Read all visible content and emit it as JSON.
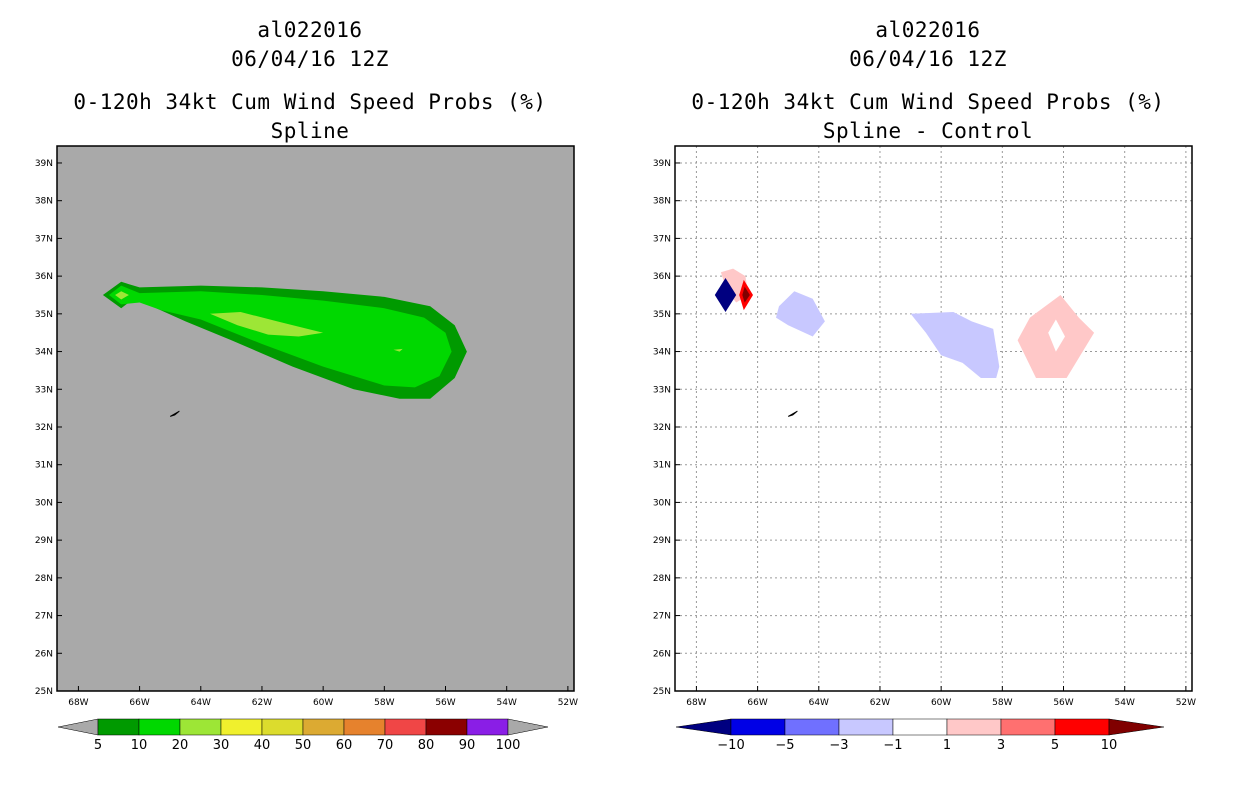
{
  "panels": [
    {
      "id": "spline",
      "title_lines": [
        "al022016",
        "06/04/16 12Z",
        "0-120h 34kt Cum Wind Speed Probs (%)",
        "Spline"
      ]
    },
    {
      "id": "difference",
      "title_lines": [
        "al022016",
        "06/04/16 12Z",
        "0-120h 34kt Cum Wind Speed Probs (%)",
        "Spline - Control"
      ]
    }
  ],
  "colors": {
    "map_background": "#a9a9a9",
    "grid": "#9a9a9a",
    "prob_5": "#009a00",
    "prob_10": "#00d800",
    "prob_20": "#9de636"
  },
  "chart_data": [
    {
      "type": "heatmap",
      "title": "0-120h 34kt Cum Wind Speed Probs (%)",
      "subtitle": "Spline",
      "storm": "al022016",
      "date": "06/04/16 12Z",
      "x_ticks": [
        "68W",
        "66W",
        "64W",
        "62W",
        "60W",
        "58W",
        "56W",
        "54W",
        "52W"
      ],
      "y_ticks": [
        "25N",
        "26N",
        "27N",
        "28N",
        "29N",
        "30N",
        "31N",
        "32N",
        "33N",
        "34N",
        "35N",
        "36N",
        "37N",
        "38N",
        "39N"
      ],
      "xlim": [
        -68.7,
        -51.8
      ],
      "ylim": [
        25,
        39.45
      ],
      "grid": false,
      "colorbar": {
        "labels": [
          "5",
          "10",
          "20",
          "30",
          "40",
          "50",
          "60",
          "70",
          "80",
          "90",
          "100"
        ],
        "colors": [
          "#009a00",
          "#00d800",
          "#9de636",
          "#f0f02d",
          "#dcdc2d",
          "#dcaa32",
          "#e6822d",
          "#f04646",
          "#8b0000",
          "#8a1ee6"
        ]
      },
      "contours": [
        {
          "level": 5,
          "color": "#009a00",
          "polygon": [
            [
              -67.2,
              35.5
            ],
            [
              -66.6,
              35.85
            ],
            [
              -66.0,
              35.7
            ],
            [
              -64.0,
              35.75
            ],
            [
              -62.0,
              35.7
            ],
            [
              -60.0,
              35.6
            ],
            [
              -58.0,
              35.45
            ],
            [
              -56.5,
              35.2
            ],
            [
              -55.7,
              34.7
            ],
            [
              -55.3,
              34.0
            ],
            [
              -55.7,
              33.3
            ],
            [
              -56.5,
              32.75
            ],
            [
              -57.5,
              32.75
            ],
            [
              -59.0,
              33.0
            ],
            [
              -61.0,
              33.6
            ],
            [
              -63.0,
              34.3
            ],
            [
              -64.5,
              34.8
            ],
            [
              -65.6,
              35.2
            ],
            [
              -66.2,
              35.4
            ],
            [
              -66.6,
              35.15
            ]
          ]
        },
        {
          "level": 10,
          "color": "#00d800",
          "polygon": [
            [
              -67.0,
              35.5
            ],
            [
              -66.6,
              35.75
            ],
            [
              -66.0,
              35.55
            ],
            [
              -64.0,
              35.6
            ],
            [
              -62.0,
              35.5
            ],
            [
              -60.0,
              35.35
            ],
            [
              -58.0,
              35.15
            ],
            [
              -56.7,
              34.9
            ],
            [
              -56.0,
              34.5
            ],
            [
              -55.8,
              34.0
            ],
            [
              -56.2,
              33.35
            ],
            [
              -57.0,
              33.05
            ],
            [
              -58.0,
              33.1
            ],
            [
              -60.0,
              33.6
            ],
            [
              -62.0,
              34.2
            ],
            [
              -64.0,
              34.85
            ],
            [
              -65.3,
              35.1
            ],
            [
              -66.0,
              35.3
            ],
            [
              -66.6,
              35.25
            ]
          ]
        },
        {
          "level": 20,
          "color": "#9de636",
          "polygon": [
            [
              -66.8,
              35.5
            ],
            [
              -66.6,
              35.6
            ],
            [
              -66.35,
              35.5
            ],
            [
              -66.6,
              35.38
            ]
          ]
        },
        {
          "level": 20,
          "color": "#9de636",
          "polygon": [
            [
              -63.7,
              35.0
            ],
            [
              -62.7,
              35.05
            ],
            [
              -61.5,
              34.8
            ],
            [
              -60.0,
              34.5
            ],
            [
              -60.8,
              34.4
            ],
            [
              -61.8,
              34.45
            ],
            [
              -62.8,
              34.7
            ]
          ]
        },
        {
          "level": 20,
          "color": "#9de636",
          "polygon": [
            [
              -57.7,
              34.05
            ],
            [
              -57.4,
              34.07
            ],
            [
              -57.5,
              34.0
            ]
          ]
        }
      ]
    },
    {
      "type": "heatmap",
      "title": "0-120h 34kt Cum Wind Speed Probs (%)",
      "subtitle": "Spline - Control",
      "storm": "al022016",
      "date": "06/04/16 12Z",
      "x_ticks": [
        "68W",
        "66W",
        "64W",
        "62W",
        "60W",
        "58W",
        "56W",
        "54W",
        "52W"
      ],
      "y_ticks": [
        "25N",
        "26N",
        "27N",
        "28N",
        "29N",
        "30N",
        "31N",
        "32N",
        "33N",
        "34N",
        "35N",
        "36N",
        "37N",
        "38N",
        "39N"
      ],
      "xlim": [
        -68.7,
        -51.8
      ],
      "ylim": [
        25,
        39.45
      ],
      "grid": true,
      "colorbar": {
        "labels": [
          "-10",
          "-5",
          "-3",
          "-1",
          "1",
          "3",
          "5",
          "10"
        ],
        "colors": [
          "#000080",
          "#0000e6",
          "#7070ff",
          "#c8c8ff",
          "#ffffff",
          "#ffc8c8",
          "#ff7070",
          "#ff0000",
          "#800000"
        ]
      },
      "contours": [
        {
          "level": 1,
          "color": "#ffc8c8",
          "polygon": [
            [
              -67.2,
              36.1
            ],
            [
              -66.8,
              36.2
            ],
            [
              -66.4,
              36.0
            ],
            [
              -66.3,
              35.5
            ],
            [
              -66.7,
              35.3
            ],
            [
              -67.0,
              35.6
            ]
          ]
        },
        {
          "level": -10,
          "color": "#000080",
          "polygon": [
            [
              -67.4,
              35.5
            ],
            [
              -67.05,
              35.95
            ],
            [
              -66.7,
              35.5
            ],
            [
              -67.05,
              35.05
            ]
          ]
        },
        {
          "level": 5,
          "color": "#ff0000",
          "polygon": [
            [
              -66.6,
              35.5
            ],
            [
              -66.45,
              35.9
            ],
            [
              -66.15,
              35.5
            ],
            [
              -66.45,
              35.1
            ]
          ]
        },
        {
          "level": 10,
          "color": "#800000",
          "polygon": [
            [
              -66.5,
              35.5
            ],
            [
              -66.42,
              35.72
            ],
            [
              -66.25,
              35.5
            ],
            [
              -66.42,
              35.3
            ]
          ]
        },
        {
          "level": -1,
          "color": "#c8c8ff",
          "polygon": [
            [
              -65.3,
              35.2
            ],
            [
              -64.8,
              35.6
            ],
            [
              -64.2,
              35.4
            ],
            [
              -63.8,
              34.8
            ],
            [
              -64.2,
              34.4
            ],
            [
              -65.0,
              34.7
            ],
            [
              -65.4,
              34.9
            ]
          ]
        },
        {
          "level": -1,
          "color": "#c8c8ff",
          "polygon": [
            [
              -61.0,
              35.0
            ],
            [
              -59.6,
              35.05
            ],
            [
              -59.0,
              34.8
            ],
            [
              -58.3,
              34.6
            ],
            [
              -58.1,
              33.6
            ],
            [
              -58.2,
              33.3
            ],
            [
              -58.7,
              33.3
            ],
            [
              -59.3,
              33.7
            ],
            [
              -60.0,
              33.9
            ],
            [
              -60.5,
              34.5
            ]
          ]
        },
        {
          "level": 1,
          "color": "#ffc8c8",
          "polygon": [
            [
              -57.1,
              34.9
            ],
            [
              -56.1,
              35.5
            ],
            [
              -55.5,
              34.9
            ],
            [
              -55.0,
              34.5
            ],
            [
              -55.6,
              33.7
            ],
            [
              -55.9,
              33.3
            ],
            [
              -56.9,
              33.3
            ],
            [
              -57.5,
              34.3
            ]
          ]
        }
      ],
      "holes": [
        {
          "color": "#ffffff",
          "polygon": [
            [
              -56.5,
              34.5
            ],
            [
              -56.25,
              34.85
            ],
            [
              -55.95,
              34.4
            ],
            [
              -56.25,
              34.0
            ]
          ]
        }
      ]
    }
  ]
}
